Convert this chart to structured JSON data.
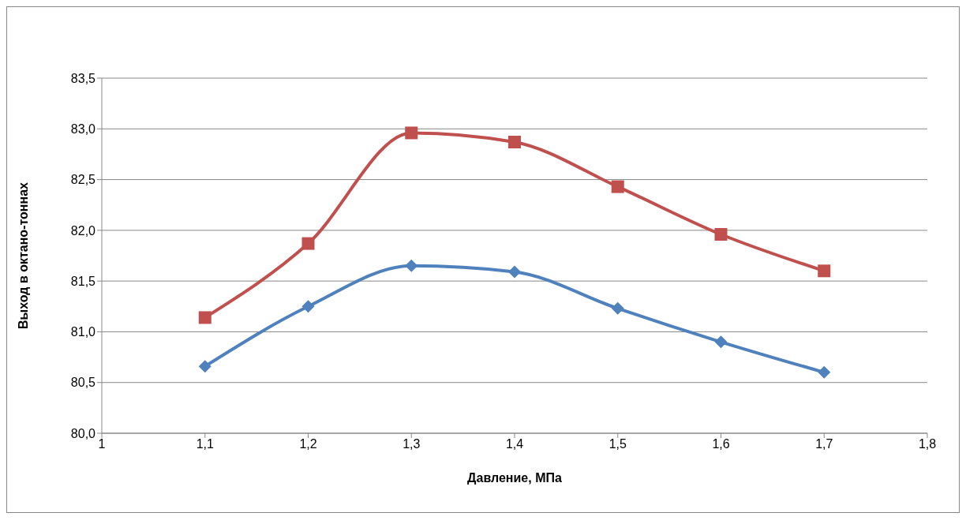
{
  "chart_data": {
    "type": "line",
    "xlabel": "Давление, МПа",
    "ylabel": "Выход в октано-тоннах",
    "x": [
      1.1,
      1.2,
      1.3,
      1.4,
      1.5,
      1.6,
      1.7
    ],
    "series": [
      {
        "color": "#4f81bd",
        "marker": "diamond",
        "values": [
          80.66,
          81.25,
          81.65,
          81.59,
          81.23,
          80.9,
          80.6
        ]
      },
      {
        "color": "#c0504d",
        "marker": "square",
        "values": [
          81.14,
          81.87,
          82.96,
          82.87,
          82.43,
          81.96,
          81.6
        ]
      }
    ],
    "xlim": [
      1,
      1.8
    ],
    "xticks": [
      1,
      {
        "value": 1.1,
        "label": "1,1"
      },
      {
        "value": 1.2,
        "label": "1,2"
      },
      {
        "value": 1.3,
        "label": "1,3"
      },
      {
        "value": 1.4,
        "label": "1,4"
      },
      {
        "value": 1.5,
        "label": "1,5"
      },
      {
        "value": 1.6,
        "label": "1,6"
      },
      {
        "value": 1.7,
        "label": "1,7"
      },
      {
        "value": 1.8,
        "label": "1,8"
      }
    ],
    "ylim": [
      80,
      83.5
    ],
    "yticks": [
      {
        "value": 80,
        "label": "80,0"
      },
      {
        "value": 80.5,
        "label": "80,5"
      },
      {
        "value": 81,
        "label": "81,0"
      },
      {
        "value": 81.5,
        "label": "81,5"
      },
      {
        "value": 82,
        "label": "82,0"
      },
      {
        "value": 82.5,
        "label": "82,5"
      },
      {
        "value": 83,
        "label": "83,0"
      },
      {
        "value": 83.5,
        "label": "83,5"
      }
    ],
    "grid": "y",
    "line_style": "solid"
  }
}
